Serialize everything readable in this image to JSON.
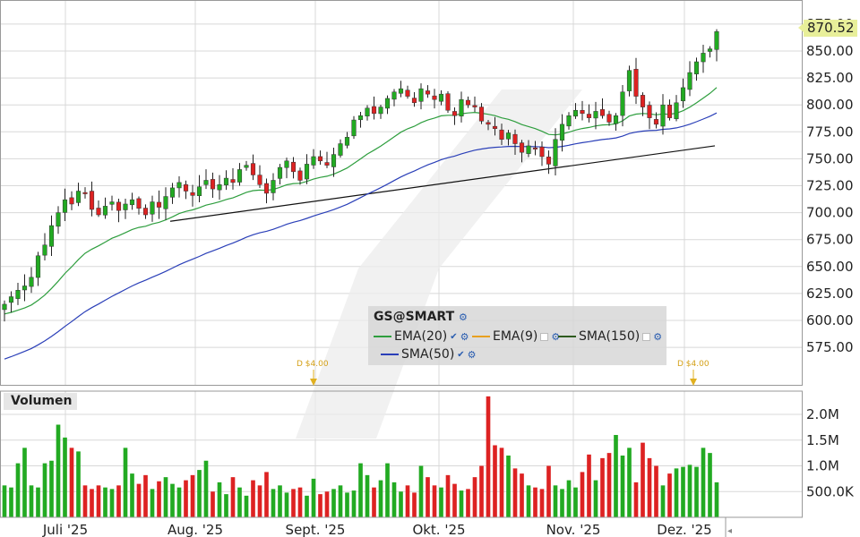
{
  "chart_data": [
    {
      "type": "candlestick",
      "instrument": "GS@SMART",
      "price_axis": {
        "range": [
          548,
          880
        ],
        "ticks": [
          "575.00",
          "600.00",
          "625.00",
          "650.00",
          "675.00",
          "700.00",
          "725.00",
          "750.00",
          "775.00",
          "800.00",
          "825.00",
          "850.00",
          "875.00"
        ]
      },
      "last_price": "870.52",
      "x_labels": [
        "Juli '25",
        "Aug. '25",
        "Sept. '25",
        "Okt. '25",
        "Nov. '25",
        "Dez. '25"
      ],
      "closes": [
        615,
        622,
        628,
        632,
        640,
        660,
        670,
        688,
        700,
        712,
        708,
        720,
        718,
        703,
        698,
        706,
        710,
        702,
        708,
        712,
        704,
        698,
        710,
        705,
        715,
        723,
        728,
        720,
        716,
        724,
        730,
        722,
        726,
        732,
        728,
        740,
        744,
        735,
        726,
        718,
        730,
        742,
        748,
        738,
        730,
        745,
        752,
        748,
        744,
        754,
        764,
        770,
        786,
        790,
        797,
        792,
        798,
        806,
        812,
        815,
        808,
        802,
        815,
        810,
        805,
        810,
        795,
        790,
        805,
        800,
        798,
        785,
        782,
        778,
        768,
        774,
        764,
        756,
        762,
        760,
        752,
        745,
        768,
        782,
        790,
        795,
        792,
        788,
        794,
        790,
        784,
        790,
        812,
        832,
        808,
        798,
        788,
        782,
        800,
        788,
        802,
        816,
        830,
        840,
        848,
        852,
        868
      ],
      "volume_axis": {
        "ticks": [
          "500.0K",
          "1.0M",
          "1.5M",
          "2.0M"
        ]
      },
      "volumes": [
        0.62,
        0.58,
        1.05,
        1.35,
        0.62,
        0.58,
        1.05,
        1.1,
        1.8,
        1.55,
        1.35,
        1.28,
        0.62,
        0.55,
        0.62,
        0.58,
        0.55,
        0.62,
        1.35,
        0.85,
        0.65,
        0.82,
        0.55,
        0.7,
        0.78,
        0.65,
        0.58,
        0.72,
        0.82,
        0.92,
        1.1,
        0.5,
        0.68,
        0.45,
        0.78,
        0.58,
        0.42,
        0.72,
        0.62,
        0.88,
        0.55,
        0.62,
        0.48,
        0.55,
        0.58,
        0.42,
        0.75,
        0.45,
        0.5,
        0.55,
        0.62,
        0.48,
        0.52,
        1.05,
        0.82,
        0.58,
        0.72,
        1.05,
        0.68,
        0.5,
        0.62,
        0.48,
        1.0,
        0.78,
        0.62,
        0.58,
        0.82,
        0.65,
        0.52,
        0.55,
        0.78,
        1.0,
        2.35,
        1.4,
        1.35,
        1.2,
        0.95,
        0.85,
        0.62,
        0.58,
        0.55,
        1.0,
        0.62,
        0.55,
        0.72,
        0.58,
        0.88,
        1.22,
        0.72,
        1.15,
        1.25,
        1.6,
        1.2,
        1.35,
        0.68,
        1.45,
        1.15,
        1.0,
        0.62,
        0.85,
        0.95,
        0.98,
        1.02,
        0.98,
        1.35,
        1.25,
        0.68
      ],
      "ema20_start": 605,
      "sma50_start": 562,
      "trendlines": [
        {
          "from": [
            "Aug. '25",
            692
          ],
          "to": [
            "Dez. '25",
            762
          ]
        }
      ],
      "dividends": [
        "D $4.00",
        "D $4.00"
      ],
      "legend": [
        {
          "label": "EMA(20)",
          "color": "#2e9e3e"
        },
        {
          "label": "EMA(9)",
          "color": "#e8a020"
        },
        {
          "label": "SMA(150)",
          "color": "#2e5a1e"
        },
        {
          "label": "SMA(50)",
          "color": "#2a3fb8"
        }
      ],
      "volume_panel_title": "Volumen",
      "grid": true
    }
  ],
  "colors": {
    "up": "#22aa22",
    "down": "#dd2222",
    "bg": "#ffffff",
    "grid": "#d8d8d8"
  }
}
